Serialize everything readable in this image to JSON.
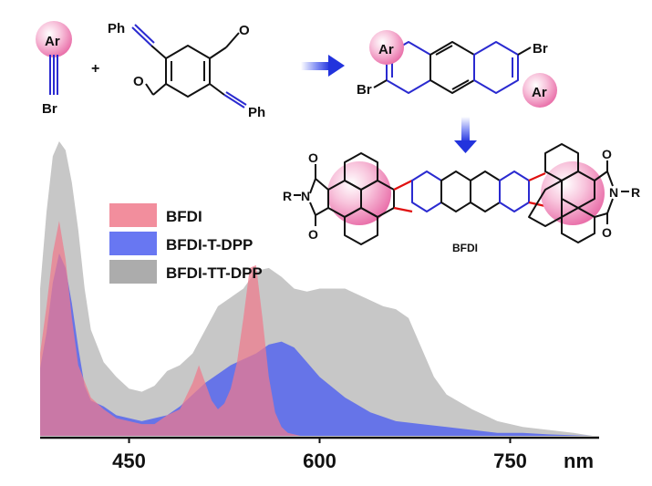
{
  "chart_data": {
    "type": "area",
    "xlabel": "nm",
    "xlim": [
      380,
      820
    ],
    "ylim": [
      0,
      1
    ],
    "x_ticks": [
      450,
      600,
      750
    ],
    "grid": false,
    "legend_position": "top-left",
    "series": [
      {
        "name": "BFDI-TT-DPP",
        "color": "#bdbdbd",
        "x": [
          380,
          385,
          390,
          395,
          400,
          405,
          410,
          415,
          420,
          430,
          440,
          450,
          460,
          470,
          480,
          490,
          500,
          510,
          520,
          530,
          540,
          550,
          560,
          570,
          580,
          590,
          600,
          620,
          640,
          650,
          660,
          670,
          680,
          690,
          700,
          720,
          740,
          760,
          780,
          800,
          815
        ],
        "y": [
          0.5,
          0.76,
          0.95,
          1.0,
          0.97,
          0.86,
          0.7,
          0.5,
          0.36,
          0.25,
          0.2,
          0.16,
          0.15,
          0.17,
          0.22,
          0.24,
          0.28,
          0.36,
          0.44,
          0.47,
          0.5,
          0.56,
          0.57,
          0.54,
          0.5,
          0.49,
          0.5,
          0.5,
          0.46,
          0.44,
          0.43,
          0.4,
          0.3,
          0.2,
          0.14,
          0.09,
          0.05,
          0.03,
          0.02,
          0.01,
          0.0
        ]
      },
      {
        "name": "BFDI-T-DPP",
        "color": "#4d5ff0",
        "x": [
          380,
          385,
          390,
          395,
          400,
          405,
          410,
          415,
          420,
          430,
          440,
          450,
          460,
          470,
          480,
          490,
          500,
          510,
          520,
          530,
          540,
          550,
          560,
          570,
          580,
          590,
          600,
          620,
          640,
          660,
          680,
          700,
          720,
          740,
          760,
          780,
          800,
          815
        ],
        "y": [
          0.23,
          0.35,
          0.52,
          0.62,
          0.57,
          0.45,
          0.3,
          0.17,
          0.12,
          0.1,
          0.07,
          0.06,
          0.05,
          0.06,
          0.07,
          0.1,
          0.14,
          0.18,
          0.21,
          0.24,
          0.26,
          0.28,
          0.31,
          0.32,
          0.3,
          0.25,
          0.2,
          0.13,
          0.08,
          0.05,
          0.04,
          0.03,
          0.02,
          0.01,
          0.01,
          0.005,
          0.002,
          0.0
        ]
      },
      {
        "name": "BFDI",
        "color": "#f07a8c",
        "x": [
          380,
          385,
          390,
          395,
          400,
          405,
          410,
          420,
          430,
          440,
          450,
          460,
          470,
          480,
          490,
          500,
          505,
          510,
          515,
          520,
          525,
          530,
          535,
          540,
          545,
          550,
          555,
          560,
          565,
          570,
          575,
          580,
          585,
          590,
          600,
          620
        ],
        "y": [
          0.28,
          0.44,
          0.62,
          0.73,
          0.6,
          0.4,
          0.24,
          0.13,
          0.09,
          0.06,
          0.05,
          0.04,
          0.04,
          0.07,
          0.09,
          0.18,
          0.24,
          0.18,
          0.12,
          0.09,
          0.11,
          0.16,
          0.25,
          0.4,
          0.57,
          0.58,
          0.4,
          0.2,
          0.08,
          0.03,
          0.01,
          0.005,
          0.0,
          0.0,
          0.0,
          0.0
        ]
      }
    ],
    "legend": [
      "BFDI",
      "BFDI-T-DPP",
      "BFDI-TT-DPP"
    ]
  },
  "scheme": {
    "ar_label": "Ar",
    "br_label": "Br",
    "ph_label": "Ph",
    "plus": "+",
    "o_label": "O",
    "n_label": "N",
    "r_label": "R",
    "compound_label": "BFDI"
  },
  "colors": {
    "highlight_sphere": "#f29ac2",
    "arrow": "#3344e0",
    "ring_blue": "#2a2ad0",
    "bond_red": "#e01010"
  }
}
